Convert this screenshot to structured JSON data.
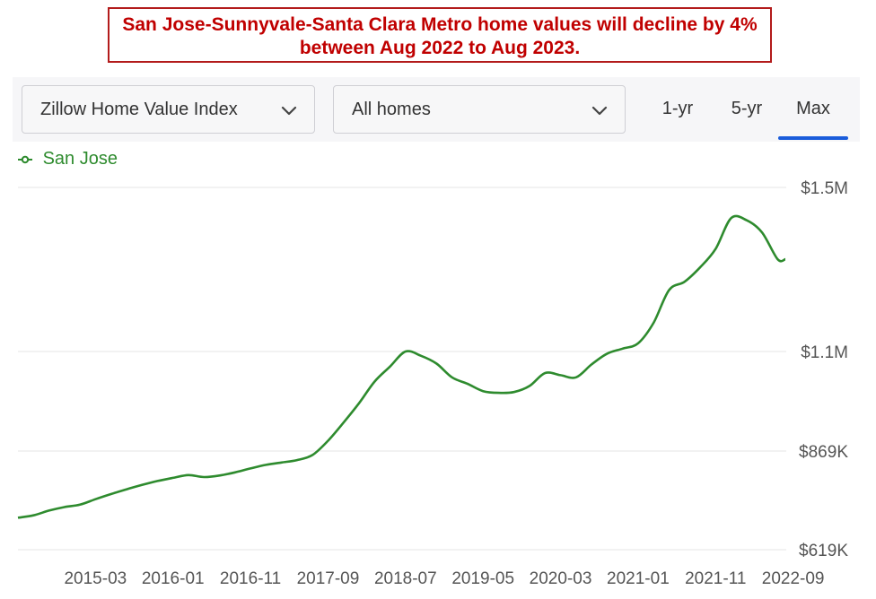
{
  "headline": {
    "line1": "San Jose-Sunnyvale-Santa Clara Metro home values will decline by 4%",
    "line2": "between Aug 2022 to Aug 2023."
  },
  "toolbar": {
    "metric_dropdown": "Zillow Home Value Index",
    "type_dropdown": "All homes",
    "range_tabs": [
      "1-yr",
      "5-yr",
      "Max"
    ],
    "active_tab": "Max"
  },
  "colors": {
    "headline_red": "#c00000",
    "series_green": "#2e8b2e",
    "active_tab_blue": "#1a5cdb",
    "grid": "#e6e6e6"
  },
  "chart_data": {
    "type": "line",
    "legend_position": "top-left",
    "grid": true,
    "y_axis_side": "right",
    "ylim": [
      619000,
      1500000
    ],
    "y_tick_values": [
      619000,
      869000,
      1100000,
      1500000
    ],
    "y_tick_labels": [
      "$619K",
      "$869K",
      "$1.1M",
      "$1.5M"
    ],
    "x_tick_labels": [
      "2015-03",
      "2016-01",
      "2016-11",
      "2017-09",
      "2018-07",
      "2019-05",
      "2020-03",
      "2021-01",
      "2021-11",
      "2022-09"
    ],
    "series": [
      {
        "name": "San Jose",
        "x": [
          "2014-05",
          "2014-07",
          "2014-09",
          "2014-11",
          "2015-01",
          "2015-03",
          "2015-05",
          "2015-07",
          "2015-09",
          "2015-11",
          "2016-01",
          "2016-03",
          "2016-05",
          "2016-07",
          "2016-09",
          "2016-11",
          "2017-01",
          "2017-03",
          "2017-05",
          "2017-07",
          "2017-09",
          "2017-11",
          "2018-01",
          "2018-03",
          "2018-05",
          "2018-07",
          "2018-09",
          "2018-11",
          "2019-01",
          "2019-03",
          "2019-05",
          "2019-07",
          "2019-09",
          "2019-11",
          "2020-01",
          "2020-03",
          "2020-05",
          "2020-07",
          "2020-09",
          "2020-11",
          "2021-01",
          "2021-03",
          "2021-05",
          "2021-07",
          "2021-09",
          "2021-11",
          "2022-01",
          "2022-03",
          "2022-05",
          "2022-07",
          "2022-08"
        ],
        "values": [
          700000,
          706000,
          718000,
          727000,
          733000,
          747000,
          760000,
          772000,
          783000,
          793000,
          801000,
          808000,
          803000,
          807000,
          815000,
          825000,
          834000,
          840000,
          846000,
          859000,
          893000,
          935000,
          980000,
          1030000,
          1065000,
          1100000,
          1090000,
          1072000,
          1040000,
          1025000,
          1008000,
          1004000,
          1006000,
          1020000,
          1050000,
          1045000,
          1040000,
          1070000,
          1095000,
          1107000,
          1120000,
          1170000,
          1250000,
          1270000,
          1305000,
          1350000,
          1425000,
          1420000,
          1390000,
          1325000,
          1325000
        ]
      }
    ]
  }
}
